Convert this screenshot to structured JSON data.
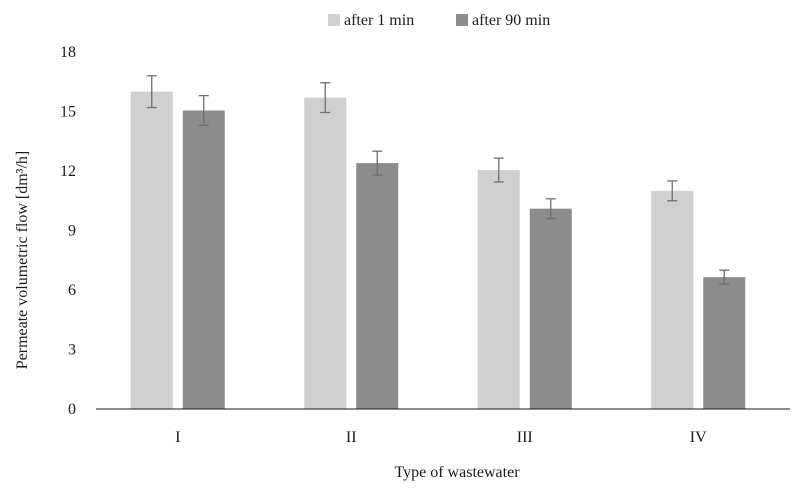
{
  "chart_data": {
    "type": "bar",
    "title": "",
    "xlabel": "Type of wastewater",
    "ylabel": "Permeate volumetric flow [dm³/h]",
    "ylim": [
      0,
      18
    ],
    "yticks": [
      "0",
      "3",
      "6",
      "9",
      "12",
      "15",
      "18"
    ],
    "categories": [
      "I",
      "II",
      "III",
      "IV"
    ],
    "series": [
      {
        "name": "after 1 min",
        "color": "#d0d0d0",
        "values": [
          16.0,
          15.7,
          12.05,
          11.0
        ],
        "errors": [
          0.8,
          0.75,
          0.6,
          0.5
        ]
      },
      {
        "name": "after 90 min",
        "color": "#8c8c8c",
        "values": [
          15.05,
          12.4,
          10.1,
          6.65
        ],
        "errors": [
          0.75,
          0.6,
          0.5,
          0.35
        ]
      }
    ],
    "legend": "top-center",
    "grid": false
  }
}
